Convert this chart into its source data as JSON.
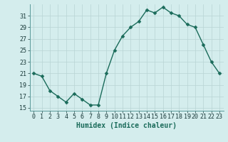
{
  "x": [
    0,
    1,
    2,
    3,
    4,
    5,
    6,
    7,
    8,
    9,
    10,
    11,
    12,
    13,
    14,
    15,
    16,
    17,
    18,
    19,
    20,
    21,
    22,
    23
  ],
  "y": [
    21,
    20.5,
    18,
    17,
    16,
    17.5,
    16.5,
    15.5,
    15.5,
    21,
    25,
    27.5,
    29,
    30,
    32,
    31.5,
    32.5,
    31.5,
    31,
    29.5,
    29,
    26,
    23,
    21
  ],
  "line_color": "#1a6b5a",
  "marker_color": "#1a6b5a",
  "background_color": "#d4eded",
  "grid_color": "#b8d4d4",
  "xlabel": "Humidex (Indice chaleur)",
  "xlim": [
    -0.5,
    23.5
  ],
  "ylim": [
    14.5,
    33
  ],
  "yticks": [
    15,
    17,
    19,
    21,
    23,
    25,
    27,
    29,
    31
  ],
  "xticks": [
    0,
    1,
    2,
    3,
    4,
    5,
    6,
    7,
    8,
    9,
    10,
    11,
    12,
    13,
    14,
    15,
    16,
    17,
    18,
    19,
    20,
    21,
    22,
    23
  ],
  "xlabel_fontsize": 7,
  "tick_fontsize": 6,
  "line_width": 1.0,
  "marker_size": 2.5
}
